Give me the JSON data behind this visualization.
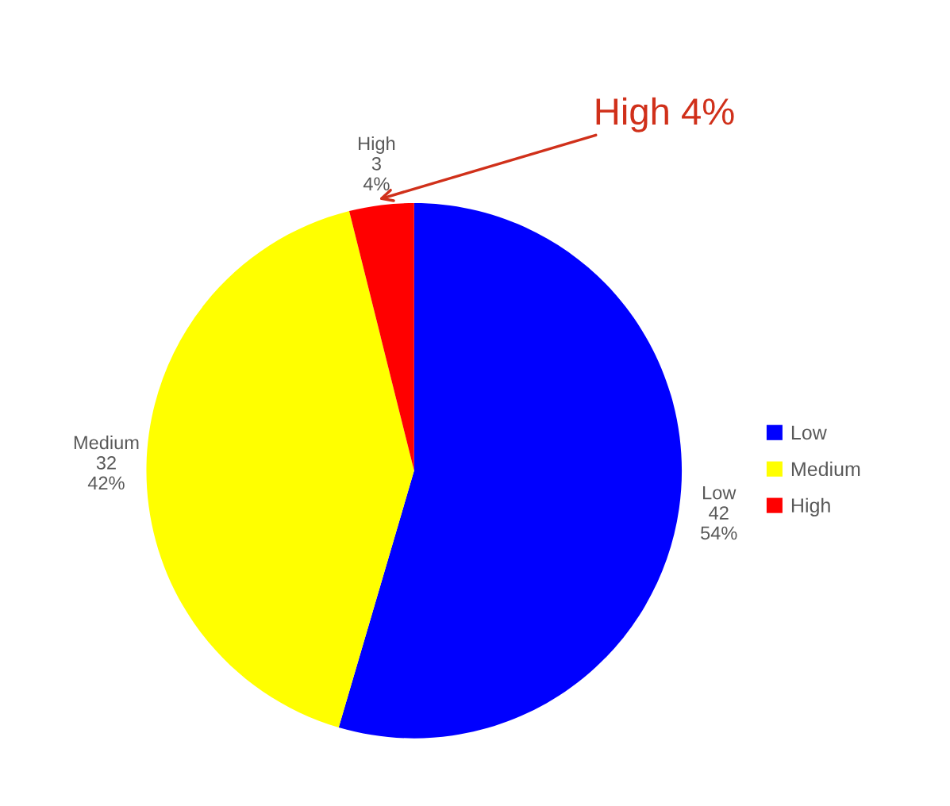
{
  "chart_data": {
    "type": "pie",
    "categories": [
      "Low",
      "Medium",
      "High"
    ],
    "values": [
      42,
      32,
      3
    ],
    "value_labels": [
      "42\n54%",
      "32\n42%",
      "3\n4%"
    ],
    "colors": [
      "#0000ff",
      "#ffff00",
      "#ff0000"
    ],
    "legend": "right",
    "annotations": [
      "High 4%"
    ]
  }
}
